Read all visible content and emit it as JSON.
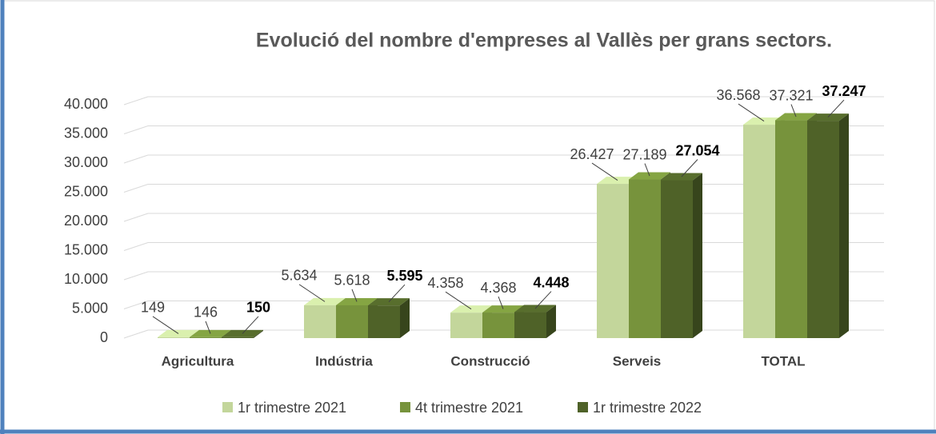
{
  "chart_data": {
    "type": "bar3d",
    "title": "Evolució del nombre d'empreses al Vallès per grans sectors.",
    "categories": [
      "Agricultura",
      "Indústria",
      "Construcció",
      "Serveis",
      "TOTAL"
    ],
    "series": [
      {
        "name": "1r trimestre 2021",
        "color": "#c3d69b",
        "values": [
          149,
          5634,
          4358,
          26427,
          36568
        ],
        "value_labels": [
          "149",
          "5.634",
          "4.358",
          "26.427",
          "36.568"
        ]
      },
      {
        "name": "4t trimestre 2021",
        "color": "#77933c",
        "values": [
          146,
          5618,
          4368,
          27189,
          37321
        ],
        "value_labels": [
          "146",
          "5.618",
          "4.368",
          "27.189",
          "37.321"
        ]
      },
      {
        "name": "1r trimestre 2022",
        "color": "#4f6228",
        "values": [
          150,
          5595,
          4448,
          27054,
          37247
        ],
        "value_labels": [
          "150",
          "5.595",
          "4.448",
          "27.054",
          "37.247"
        ]
      }
    ],
    "ylim": [
      0,
      40000
    ],
    "yticks": [
      0,
      {
        "value": 5000,
        "label": "5.000"
      },
      {
        "value": 10000,
        "label": "10.000"
      },
      {
        "value": 15000,
        "label": "15.000"
      },
      {
        "value": 20000,
        "label": "20.000"
      },
      {
        "value": 25000,
        "label": "25.000"
      },
      {
        "value": 30000,
        "label": "30.000"
      },
      {
        "value": 35000,
        "label": "35.000"
      },
      {
        "value": 40000,
        "label": "40.000"
      }
    ],
    "grid": true,
    "legend": "bottom"
  }
}
